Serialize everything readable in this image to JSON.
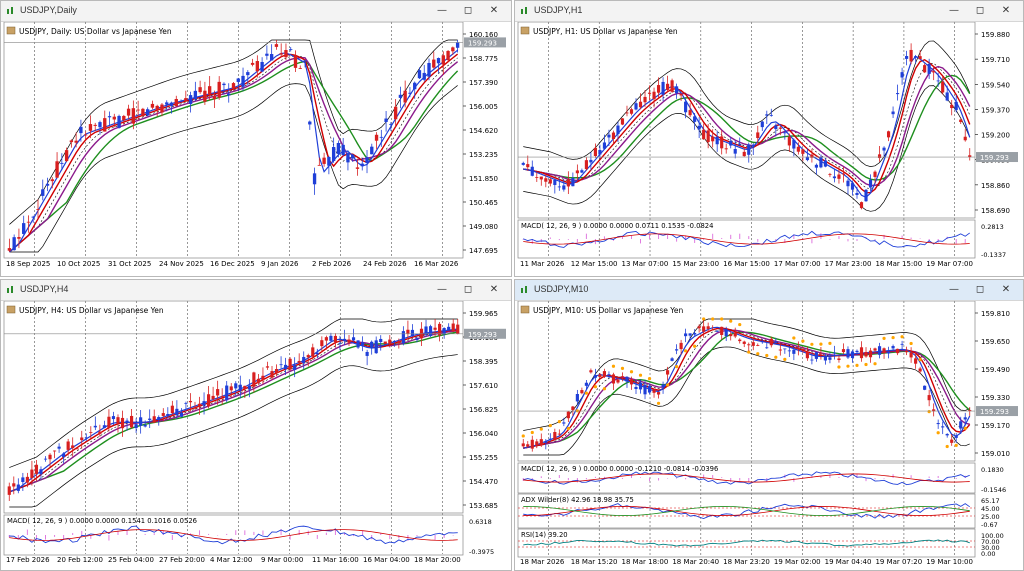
{
  "windows": [
    {
      "id": "w1",
      "title": "USDJPY,Daily",
      "active": false,
      "subtitle": "USDJPY, Daily:  US Dollar vs Japanese Yen",
      "price_ticks": [
        "160.160",
        "158.775",
        "157.390",
        "156.005",
        "154.620",
        "153.235",
        "151.850",
        "150.465",
        "149.080",
        "147.695"
      ],
      "current_price": "159.293",
      "time_labels": [
        "18 Sep 2025",
        "10 Oct 2025",
        "31 Oct 2025",
        "24 Nov 2025",
        "16 Dec 2025",
        "9 Jan 2026",
        "2 Feb 2026",
        "24 Feb 2026",
        "16 Mar 2026"
      ],
      "indicators": []
    },
    {
      "id": "w2",
      "title": "USDJPY,H1",
      "active": false,
      "subtitle": "USDJPY, H1:  US Dollar vs Japanese Yen",
      "price_ticks": [
        "159.880",
        "159.710",
        "159.540",
        "159.370",
        "159.200",
        "159.030",
        "158.860",
        "158.690"
      ],
      "current_price": "159.293",
      "time_labels": [
        "11 Mar 2026",
        "12 Mar 15:00",
        "13 Mar 07:00",
        "15 Mar 23:00",
        "16 Mar 15:00",
        "17 Mar 07:00",
        "17 Mar 23:00",
        "18 Mar 15:00",
        "19 Mar 07:00"
      ],
      "indicators": [
        {
          "label": "MACD( 12, 26, 9 ) 0.0000 0.0000 0.0711 0.1535 -0.0824",
          "ticks": [
            "0.2813",
            "-0.1337"
          ]
        }
      ]
    },
    {
      "id": "w3",
      "title": "USDJPY,H4",
      "active": false,
      "subtitle": "USDJPY, H4:  US Dollar vs Japanese Yen",
      "price_ticks": [
        "159.965",
        "159.180",
        "158.395",
        "157.610",
        "156.825",
        "156.040",
        "155.255",
        "154.470",
        "153.685"
      ],
      "current_price": "159.293",
      "time_labels": [
        "17 Feb 2026",
        "20 Feb 12:00",
        "25 Feb 04:00",
        "27 Feb 20:00",
        "4 Mar 12:00",
        "9 Mar 00:00",
        "11 Mar 16:00",
        "16 Mar 04:00",
        "18 Mar 20:00"
      ],
      "indicators": [
        {
          "label": "MACD( 12, 26, 9 ) 0.0000 0.0000 0.1541 0.1016 0.0526",
          "ticks": [
            "0.6318",
            "-0.3975"
          ]
        }
      ]
    },
    {
      "id": "w4",
      "title": "USDJPY,M10",
      "active": true,
      "subtitle": "USDJPY, M10:  US Dollar vs Japanese Yen",
      "price_ticks": [
        "159.810",
        "159.650",
        "159.490",
        "159.330",
        "159.170",
        "159.010"
      ],
      "current_price": "159.293",
      "time_labels": [
        "18 Mar 2026",
        "18 Mar 15:20",
        "18 Mar 18:00",
        "18 Mar 20:40",
        "18 Mar 23:20",
        "19 Mar 02:00",
        "19 Mar 04:40",
        "19 Mar 07:20",
        "19 Mar 10:00"
      ],
      "indicators": [
        {
          "label": "MACD( 12, 26, 9 ) 0.0000 0.0000 -0.1210 -0.0814 -0.0396",
          "ticks": [
            "0.1830",
            "-0.1546"
          ]
        },
        {
          "label": "ADX Wilder(8) 42.96 18.98 35.75",
          "ticks": [
            "65.17",
            "45.00",
            "25.00",
            "-0.67"
          ]
        },
        {
          "label": "RSI(14) 39.20",
          "ticks": [
            "100.00",
            "70.00",
            "30.00",
            "0.00"
          ]
        }
      ]
    }
  ],
  "colors": {
    "up_candle": "#1f3fd8",
    "down_candle": "#d81f1f",
    "ma_blue": "#1f3fd8",
    "ma_red": "#d00000",
    "ma_purple": "#8b1a8b",
    "ma_green": "#1e8f1e",
    "bands": "#000000",
    "psar": "#ffa500",
    "price_box": "#9aa0a6"
  },
  "titlebar_icons": [
    "chart-icon",
    "minimize-icon",
    "maximize-icon",
    "close-icon"
  ]
}
